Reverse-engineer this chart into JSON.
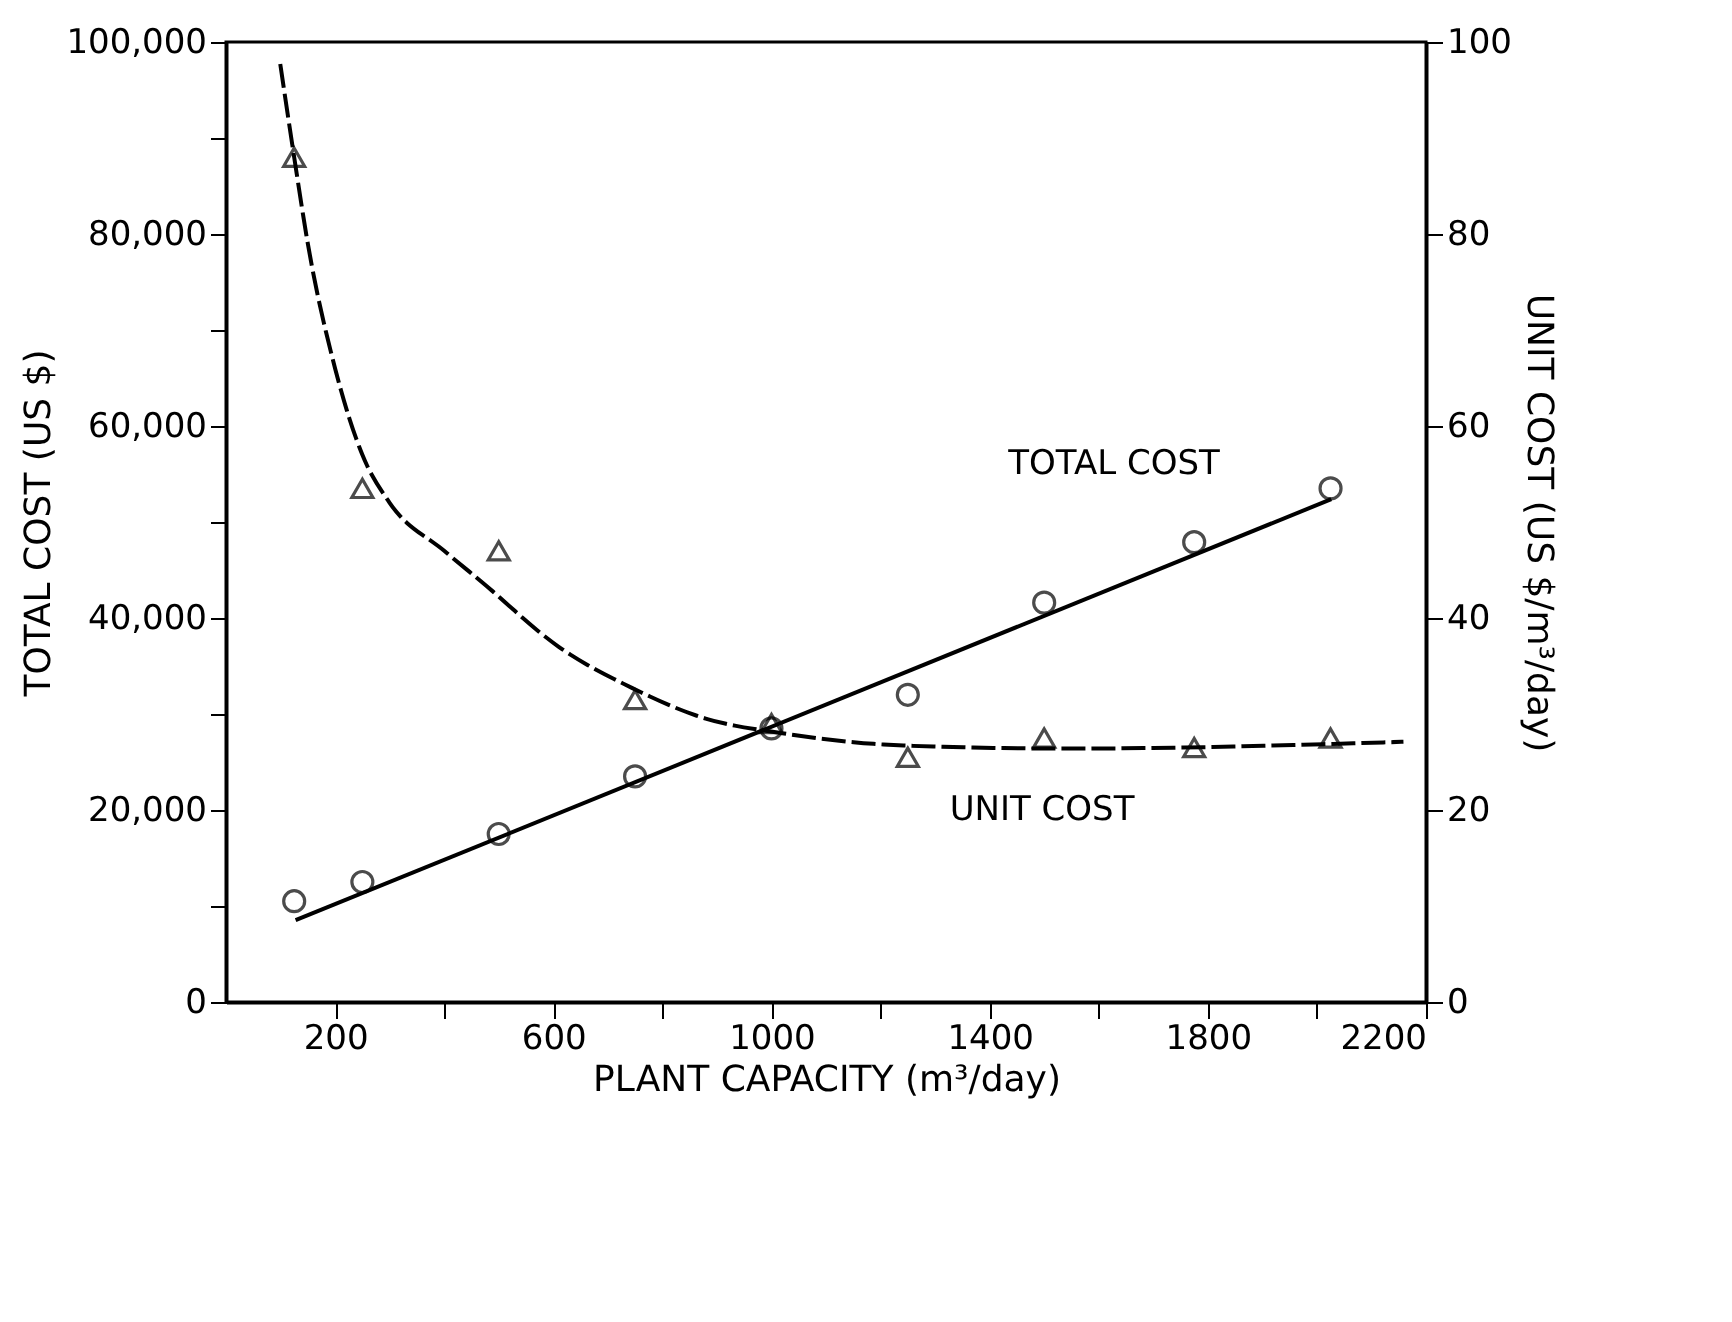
{
  "chart_data": {
    "type": "scatter",
    "xlabel": "PLANT CAPACITY (m³/day)",
    "ylabel": "TOTAL COST (US $)",
    "y2label": "UNIT COST (US $/m³/day)",
    "xlim": [
      0,
      2200
    ],
    "xticks": [
      200,
      {
        "value": 400,
        "label": null
      },
      600,
      {
        "value": 800,
        "label": null
      },
      1000,
      {
        "value": 1200,
        "label": null
      },
      1400,
      {
        "value": 1600,
        "label": null
      },
      1800,
      {
        "value": 2000,
        "label": null
      },
      2200
    ],
    "ylim": [
      0,
      100000
    ],
    "yticks": [
      0,
      {
        "value": 10000,
        "label": null
      },
      {
        "value": 20000,
        "label": "20,000"
      },
      {
        "value": 30000,
        "label": null
      },
      {
        "value": 40000,
        "label": "40,000"
      },
      {
        "value": 50000,
        "label": null
      },
      {
        "value": 60000,
        "label": "60,000"
      },
      {
        "value": 70000,
        "label": null
      },
      {
        "value": 80000,
        "label": "80,000"
      },
      {
        "value": 90000,
        "label": null
      },
      {
        "value": 100000,
        "label": "100,000"
      }
    ],
    "y2lim": [
      0,
      100
    ],
    "y2ticks": [
      0,
      20,
      40,
      60,
      80,
      100
    ],
    "grid": false,
    "series": [
      {
        "marker": "circle",
        "color": "#000000",
        "x": [
          125,
          250,
          500,
          750,
          1000,
          1250,
          1500,
          1775,
          2025
        ],
        "values": [
          10500,
          12500,
          17500,
          23500,
          28500,
          32000,
          41600,
          47900,
          53500
        ]
      },
      {
        "type": "line",
        "line_style": "solid",
        "color": "#000000",
        "x": [
          131,
          2023
        ],
        "values": [
          8600,
          52300
        ]
      },
      {
        "marker": "triangle",
        "axis": "y2",
        "color": "#000000",
        "x": [
          125,
          250,
          500,
          750,
          1000,
          1250,
          1500,
          1775,
          2025
        ],
        "values": [
          88,
          53.5,
          47,
          31.5,
          29,
          25.5,
          27.5,
          26.5,
          27.5
        ]
      },
      {
        "type": "line",
        "line_style": "dashed",
        "axis": "y2",
        "color": "#000000",
        "x": [
          100,
          125,
          150,
          200,
          250,
          300,
          400,
          470,
          610,
          745,
          875,
          1020,
          1250,
          1550,
          2155
        ],
        "values": [
          97.5,
          88,
          79,
          66,
          57,
          52,
          47,
          43.7,
          37,
          32.7,
          29.6,
          28,
          26.7,
          26.4,
          27.1
        ]
      }
    ],
    "annotations": [
      "TOTAL COST",
      "UNIT COST"
    ]
  }
}
